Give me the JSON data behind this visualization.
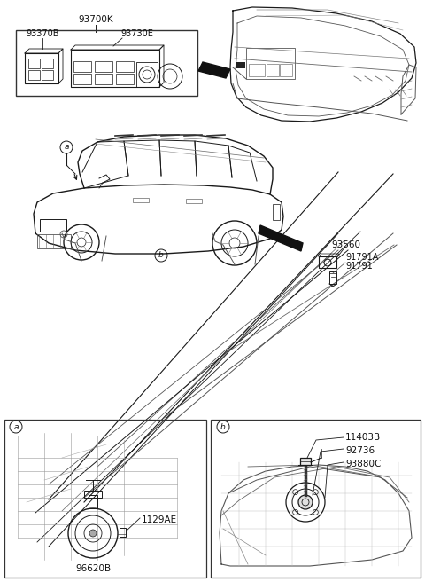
{
  "bg_color": "#ffffff",
  "lc": "#1a1a1a",
  "gray": "#888888",
  "lightgray": "#cccccc",
  "darkgray": "#555555",
  "top_box_label": "93700K",
  "top_box_sub1": "93370B",
  "top_box_sub2": "93730E",
  "mid_label_a": "a",
  "mid_label_b": "b",
  "mid_label_93560": "93560",
  "mid_label_91791A": "91791A",
  "mid_label_91791": "91791",
  "bot_left_label_a": "a",
  "bot_left_label_1129AE": "1129AE",
  "bot_left_label_96620B": "96620B",
  "bot_right_label_b": "b",
  "bot_right_label_11403B": "11403B",
  "bot_right_label_92736": "92736",
  "bot_right_label_93880C": "93880C"
}
